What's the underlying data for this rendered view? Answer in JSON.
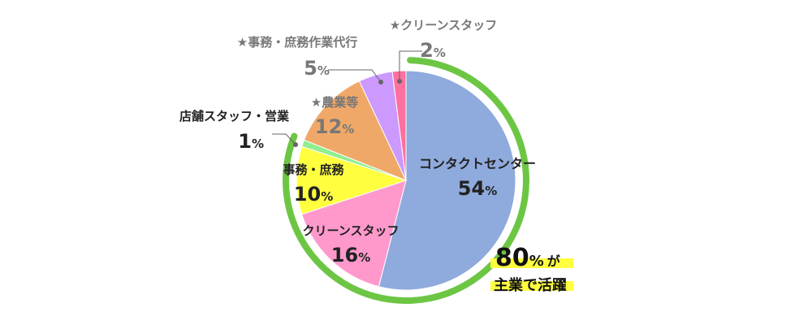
{
  "chart_data": {
    "type": "pie",
    "categories": [
      "コンタクトセンター",
      "クリーンスタッフ",
      "事務・庶務",
      "店舗スタッフ・営業",
      "★農業等",
      "★事務・庶務作業代行",
      "★クリーンスタッフ"
    ],
    "values": [
      54,
      16,
      10,
      1,
      12,
      5,
      2
    ],
    "unit": "%",
    "colors": [
      "#8faadc",
      "#ff99cc",
      "#ffff40",
      "#90ee90",
      "#f0a868",
      "#cc99ff",
      "#ff6fa0"
    ],
    "highlight": {
      "value": "80",
      "unit": "%",
      "particle": "が",
      "caption": "主業で活躍",
      "ring_color": "#6cc644",
      "marker_color": "#ffff40"
    }
  }
}
